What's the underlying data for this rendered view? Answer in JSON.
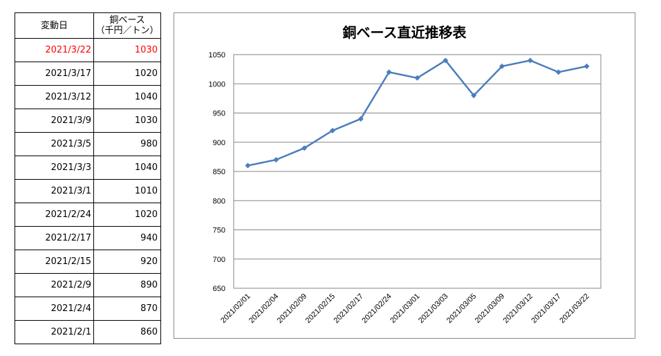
{
  "table": {
    "header_date": "変動日",
    "header_value_line1": "銅ベース",
    "header_value_line2": "（千円／トン）",
    "rows": [
      {
        "date": "2021/3/22",
        "value": "1030",
        "highlight": true
      },
      {
        "date": "2021/3/17",
        "value": "1020",
        "highlight": false
      },
      {
        "date": "2021/3/12",
        "value": "1040",
        "highlight": false
      },
      {
        "date": "2021/3/9",
        "value": "1030",
        "highlight": false
      },
      {
        "date": "2021/3/5",
        "value": "980",
        "highlight": false
      },
      {
        "date": "2021/3/3",
        "value": "1040",
        "highlight": false
      },
      {
        "date": "2021/3/1",
        "value": "1010",
        "highlight": false
      },
      {
        "date": "2021/2/24",
        "value": "1020",
        "highlight": false
      },
      {
        "date": "2021/2/17",
        "value": "940",
        "highlight": false
      },
      {
        "date": "2021/2/15",
        "value": "920",
        "highlight": false
      },
      {
        "date": "2021/2/9",
        "value": "890",
        "highlight": false
      },
      {
        "date": "2021/2/4",
        "value": "870",
        "highlight": false
      },
      {
        "date": "2021/2/1",
        "value": "860",
        "highlight": false
      }
    ],
    "highlight_color": "#ff0000"
  },
  "chart_data": {
    "type": "line",
    "title": "銅ベース直近推移表",
    "categories": [
      "2021/02/01",
      "2021/02/04",
      "2021/02/09",
      "2021/02/15",
      "2021/02/17",
      "2021/02/24",
      "2021/03/01",
      "2021/03/03",
      "2021/03/05",
      "2021/03/09",
      "2021/03/12",
      "2021/03/17",
      "2021/03/22"
    ],
    "series": [
      {
        "values": [
          860,
          870,
          890,
          920,
          940,
          1020,
          1010,
          1040,
          980,
          1030,
          1040,
          1020,
          1030
        ]
      }
    ],
    "ylim": [
      650,
      1050
    ],
    "yticks": [
      650,
      700,
      750,
      800,
      850,
      900,
      950,
      1000,
      1050
    ],
    "grid": true,
    "legend": "none",
    "line_color": "#4a7ebb"
  }
}
